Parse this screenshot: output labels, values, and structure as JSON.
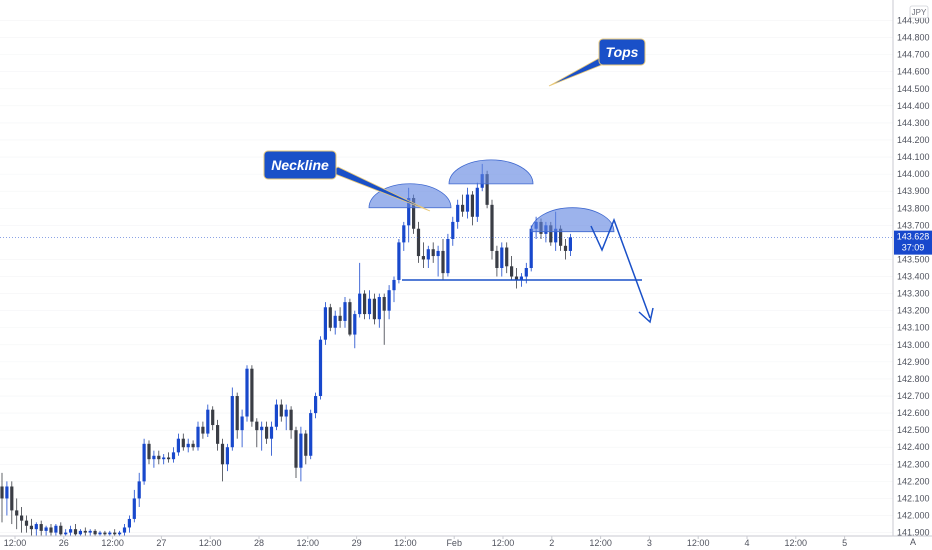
{
  "chart_data": {
    "type": "candlestick",
    "currency": "JPY",
    "ylim": [
      141.88,
      145.02
    ],
    "y_ticks": [
      "141.900",
      "142.000",
      "142.100",
      "142.200",
      "142.300",
      "142.400",
      "142.500",
      "142.600",
      "142.700",
      "142.800",
      "142.900",
      "143.000",
      "143.100",
      "143.200",
      "143.300",
      "143.400",
      "143.500",
      "143.700",
      "143.800",
      "143.900",
      "144.000",
      "144.100",
      "144.200",
      "144.300",
      "144.400",
      "144.500",
      "144.600",
      "144.700",
      "144.800",
      "144.900"
    ],
    "x_ticks": [
      "12:00",
      "26",
      "12:00",
      "27",
      "12:00",
      "28",
      "12:00",
      "29",
      "12:00",
      "Feb",
      "12:00",
      "2",
      "12:00",
      "3",
      "12:00",
      "4",
      "12:00",
      "5"
    ],
    "current_price": "143.628",
    "countdown": "37:09",
    "colors": {
      "up": "#1848cc",
      "down": "#3a3d45",
      "accent": "#1a50c8",
      "annotation": "#5f84e0"
    },
    "annotations": {
      "neckline_label": "Neckline",
      "tops_label": "Tops",
      "neckline_level": 143.38,
      "tops": [
        {
          "peak": 143.92
        },
        {
          "peak": 144.06
        },
        {
          "peak": 143.78
        }
      ]
    },
    "candles": [
      {
        "o": 142.17,
        "h": 142.25,
        "l": 141.96,
        "c": 142.1
      },
      {
        "o": 142.1,
        "h": 142.2,
        "l": 142.0,
        "c": 142.17
      },
      {
        "o": 142.17,
        "h": 142.2,
        "l": 141.95,
        "c": 142.03
      },
      {
        "o": 142.03,
        "h": 142.1,
        "l": 141.92,
        "c": 142.0
      },
      {
        "o": 142.0,
        "h": 142.05,
        "l": 141.9,
        "c": 141.97
      },
      {
        "o": 141.97,
        "h": 142.0,
        "l": 141.9,
        "c": 141.94
      },
      {
        "o": 141.94,
        "h": 141.98,
        "l": 141.88,
        "c": 141.92
      },
      {
        "o": 141.92,
        "h": 141.96,
        "l": 141.88,
        "c": 141.95
      },
      {
        "o": 141.95,
        "h": 141.97,
        "l": 141.88,
        "c": 141.91
      },
      {
        "o": 141.91,
        "h": 141.94,
        "l": 141.88,
        "c": 141.93
      },
      {
        "o": 141.93,
        "h": 141.95,
        "l": 141.88,
        "c": 141.9
      },
      {
        "o": 141.9,
        "h": 141.95,
        "l": 141.88,
        "c": 141.94
      },
      {
        "o": 141.94,
        "h": 141.96,
        "l": 141.88,
        "c": 141.89
      },
      {
        "o": 141.89,
        "h": 141.92,
        "l": 141.88,
        "c": 141.9
      },
      {
        "o": 141.9,
        "h": 141.94,
        "l": 141.88,
        "c": 141.92
      },
      {
        "o": 141.92,
        "h": 141.95,
        "l": 141.88,
        "c": 141.89
      },
      {
        "o": 141.89,
        "h": 141.92,
        "l": 141.88,
        "c": 141.91
      },
      {
        "o": 141.91,
        "h": 141.93,
        "l": 141.88,
        "c": 141.9
      },
      {
        "o": 141.9,
        "h": 141.92,
        "l": 141.88,
        "c": 141.91
      },
      {
        "o": 141.91,
        "h": 141.92,
        "l": 141.88,
        "c": 141.89
      },
      {
        "o": 141.89,
        "h": 141.91,
        "l": 141.88,
        "c": 141.9
      },
      {
        "o": 141.9,
        "h": 141.91,
        "l": 141.88,
        "c": 141.89
      },
      {
        "o": 141.89,
        "h": 141.91,
        "l": 141.88,
        "c": 141.9
      },
      {
        "o": 141.9,
        "h": 141.92,
        "l": 141.88,
        "c": 141.89
      },
      {
        "o": 141.89,
        "h": 141.91,
        "l": 141.88,
        "c": 141.9
      },
      {
        "o": 141.9,
        "h": 141.95,
        "l": 141.88,
        "c": 141.93
      },
      {
        "o": 141.93,
        "h": 142.0,
        "l": 141.9,
        "c": 141.98
      },
      {
        "o": 141.98,
        "h": 142.15,
        "l": 141.96,
        "c": 142.1
      },
      {
        "o": 142.1,
        "h": 142.25,
        "l": 142.05,
        "c": 142.2
      },
      {
        "o": 142.2,
        "h": 142.45,
        "l": 142.18,
        "c": 142.42
      },
      {
        "o": 142.42,
        "h": 142.44,
        "l": 142.3,
        "c": 142.33
      },
      {
        "o": 142.33,
        "h": 142.38,
        "l": 142.28,
        "c": 142.35
      },
      {
        "o": 142.35,
        "h": 142.38,
        "l": 142.3,
        "c": 142.33
      },
      {
        "o": 142.33,
        "h": 142.36,
        "l": 142.3,
        "c": 142.34
      },
      {
        "o": 142.34,
        "h": 142.37,
        "l": 142.31,
        "c": 142.33
      },
      {
        "o": 142.33,
        "h": 142.4,
        "l": 142.31,
        "c": 142.37
      },
      {
        "o": 142.37,
        "h": 142.48,
        "l": 142.35,
        "c": 142.45
      },
      {
        "o": 142.45,
        "h": 142.48,
        "l": 142.38,
        "c": 142.4
      },
      {
        "o": 142.4,
        "h": 142.45,
        "l": 142.37,
        "c": 142.42
      },
      {
        "o": 142.42,
        "h": 142.44,
        "l": 142.38,
        "c": 142.4
      },
      {
        "o": 142.4,
        "h": 142.55,
        "l": 142.38,
        "c": 142.52
      },
      {
        "o": 142.52,
        "h": 142.55,
        "l": 142.45,
        "c": 142.48
      },
      {
        "o": 142.48,
        "h": 142.65,
        "l": 142.46,
        "c": 142.62
      },
      {
        "o": 142.62,
        "h": 142.64,
        "l": 142.5,
        "c": 142.53
      },
      {
        "o": 142.53,
        "h": 142.56,
        "l": 142.38,
        "c": 142.42
      },
      {
        "o": 142.42,
        "h": 142.45,
        "l": 142.2,
        "c": 142.3
      },
      {
        "o": 142.3,
        "h": 142.42,
        "l": 142.26,
        "c": 142.4
      },
      {
        "o": 142.4,
        "h": 142.75,
        "l": 142.38,
        "c": 142.7
      },
      {
        "o": 142.7,
        "h": 142.72,
        "l": 142.45,
        "c": 142.5
      },
      {
        "o": 142.5,
        "h": 142.62,
        "l": 142.4,
        "c": 142.58
      },
      {
        "o": 142.58,
        "h": 142.88,
        "l": 142.55,
        "c": 142.86
      },
      {
        "o": 142.86,
        "h": 142.88,
        "l": 142.52,
        "c": 142.55
      },
      {
        "o": 142.55,
        "h": 142.57,
        "l": 142.4,
        "c": 142.5
      },
      {
        "o": 142.5,
        "h": 142.55,
        "l": 142.38,
        "c": 142.52
      },
      {
        "o": 142.52,
        "h": 142.55,
        "l": 142.42,
        "c": 142.45
      },
      {
        "o": 142.45,
        "h": 142.55,
        "l": 142.35,
        "c": 142.52
      },
      {
        "o": 142.52,
        "h": 142.68,
        "l": 142.5,
        "c": 142.65
      },
      {
        "o": 142.65,
        "h": 142.68,
        "l": 142.55,
        "c": 142.58
      },
      {
        "o": 142.58,
        "h": 142.65,
        "l": 142.5,
        "c": 142.62
      },
      {
        "o": 142.62,
        "h": 142.64,
        "l": 142.45,
        "c": 142.5
      },
      {
        "o": 142.5,
        "h": 142.52,
        "l": 142.22,
        "c": 142.28
      },
      {
        "o": 142.28,
        "h": 142.52,
        "l": 142.2,
        "c": 142.48
      },
      {
        "o": 142.48,
        "h": 142.5,
        "l": 142.3,
        "c": 142.35
      },
      {
        "o": 142.35,
        "h": 142.62,
        "l": 142.33,
        "c": 142.6
      },
      {
        "o": 142.6,
        "h": 142.72,
        "l": 142.57,
        "c": 142.7
      },
      {
        "o": 142.7,
        "h": 143.05,
        "l": 142.68,
        "c": 143.03
      },
      {
        "o": 143.03,
        "h": 143.25,
        "l": 143.0,
        "c": 143.22
      },
      {
        "o": 143.22,
        "h": 143.24,
        "l": 143.08,
        "c": 143.1
      },
      {
        "o": 143.1,
        "h": 143.2,
        "l": 143.06,
        "c": 143.17
      },
      {
        "o": 143.17,
        "h": 143.22,
        "l": 143.1,
        "c": 143.14
      },
      {
        "o": 143.14,
        "h": 143.28,
        "l": 143.1,
        "c": 143.25
      },
      {
        "o": 143.25,
        "h": 143.27,
        "l": 143.05,
        "c": 143.06
      },
      {
        "o": 143.06,
        "h": 143.2,
        "l": 142.98,
        "c": 143.18
      },
      {
        "o": 143.18,
        "h": 143.48,
        "l": 143.16,
        "c": 143.3
      },
      {
        "o": 143.3,
        "h": 143.32,
        "l": 143.15,
        "c": 143.18
      },
      {
        "o": 143.18,
        "h": 143.32,
        "l": 143.15,
        "c": 143.27
      },
      {
        "o": 143.27,
        "h": 143.3,
        "l": 143.12,
        "c": 143.15
      },
      {
        "o": 143.15,
        "h": 143.3,
        "l": 143.1,
        "c": 143.28
      },
      {
        "o": 143.28,
        "h": 143.3,
        "l": 143.0,
        "c": 143.2
      },
      {
        "o": 143.2,
        "h": 143.35,
        "l": 143.15,
        "c": 143.32
      },
      {
        "o": 143.32,
        "h": 143.4,
        "l": 143.25,
        "c": 143.38
      },
      {
        "o": 143.38,
        "h": 143.62,
        "l": 143.36,
        "c": 143.6
      },
      {
        "o": 143.6,
        "h": 143.72,
        "l": 143.55,
        "c": 143.7
      },
      {
        "o": 143.7,
        "h": 143.92,
        "l": 143.6,
        "c": 143.86
      },
      {
        "o": 143.86,
        "h": 143.88,
        "l": 143.65,
        "c": 143.68
      },
      {
        "o": 143.68,
        "h": 143.72,
        "l": 143.48,
        "c": 143.52
      },
      {
        "o": 143.52,
        "h": 143.6,
        "l": 143.45,
        "c": 143.5
      },
      {
        "o": 143.5,
        "h": 143.58,
        "l": 143.45,
        "c": 143.56
      },
      {
        "o": 143.56,
        "h": 143.6,
        "l": 143.48,
        "c": 143.52
      },
      {
        "o": 143.52,
        "h": 143.58,
        "l": 143.4,
        "c": 143.55
      },
      {
        "o": 143.55,
        "h": 143.62,
        "l": 143.38,
        "c": 143.42
      },
      {
        "o": 143.42,
        "h": 143.65,
        "l": 143.4,
        "c": 143.62
      },
      {
        "o": 143.62,
        "h": 143.75,
        "l": 143.58,
        "c": 143.72
      },
      {
        "o": 143.72,
        "h": 143.85,
        "l": 143.68,
        "c": 143.82
      },
      {
        "o": 143.82,
        "h": 143.88,
        "l": 143.75,
        "c": 143.78
      },
      {
        "o": 143.78,
        "h": 143.92,
        "l": 143.74,
        "c": 143.88
      },
      {
        "o": 143.88,
        "h": 143.9,
        "l": 143.7,
        "c": 143.75
      },
      {
        "o": 143.75,
        "h": 143.95,
        "l": 143.72,
        "c": 143.92
      },
      {
        "o": 143.92,
        "h": 144.06,
        "l": 143.9,
        "c": 144.0
      },
      {
        "o": 144.0,
        "h": 144.02,
        "l": 143.8,
        "c": 143.82
      },
      {
        "o": 143.82,
        "h": 143.85,
        "l": 143.5,
        "c": 143.55
      },
      {
        "o": 143.55,
        "h": 143.58,
        "l": 143.4,
        "c": 143.45
      },
      {
        "o": 143.45,
        "h": 143.6,
        "l": 143.4,
        "c": 143.57
      },
      {
        "o": 143.57,
        "h": 143.6,
        "l": 143.42,
        "c": 143.46
      },
      {
        "o": 143.46,
        "h": 143.52,
        "l": 143.38,
        "c": 143.4
      },
      {
        "o": 143.4,
        "h": 143.45,
        "l": 143.33,
        "c": 143.38
      },
      {
        "o": 143.38,
        "h": 143.42,
        "l": 143.34,
        "c": 143.4
      },
      {
        "o": 143.4,
        "h": 143.48,
        "l": 143.36,
        "c": 143.45
      },
      {
        "o": 143.45,
        "h": 143.7,
        "l": 143.43,
        "c": 143.68
      },
      {
        "o": 143.68,
        "h": 143.75,
        "l": 143.62,
        "c": 143.72
      },
      {
        "o": 143.72,
        "h": 143.74,
        "l": 143.62,
        "c": 143.65
      },
      {
        "o": 143.65,
        "h": 143.72,
        "l": 143.6,
        "c": 143.7
      },
      {
        "o": 143.7,
        "h": 143.72,
        "l": 143.58,
        "c": 143.6
      },
      {
        "o": 143.6,
        "h": 143.78,
        "l": 143.55,
        "c": 143.68
      },
      {
        "o": 143.68,
        "h": 143.7,
        "l": 143.55,
        "c": 143.58
      },
      {
        "o": 143.58,
        "h": 143.62,
        "l": 143.5,
        "c": 143.55
      },
      {
        "o": 143.55,
        "h": 143.65,
        "l": 143.52,
        "c": 143.63
      }
    ]
  }
}
